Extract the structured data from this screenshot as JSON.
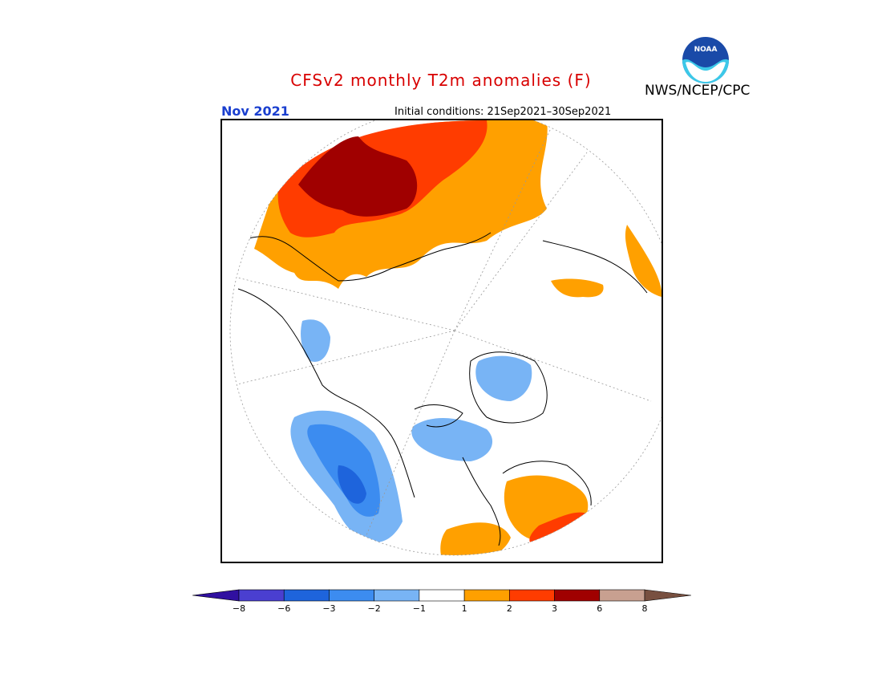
{
  "title": "CFSv2 monthly T2m anomalies (F)",
  "agency": "NWS/NCEP/CPC",
  "logo_text": "NOAA",
  "month": "Nov 2021",
  "initial_conditions": "Initial conditions: 21Sep2021–30Sep2021",
  "colors": {
    "title": "#d80000",
    "month": "#1a3fcf"
  },
  "legend": {
    "tick_labels": [
      "−8",
      "−6",
      "−3",
      "−2",
      "−1",
      "1",
      "2",
      "3",
      "6",
      "8"
    ],
    "bins": [
      {
        "range": "< -8",
        "color": "#3010a0"
      },
      {
        "range": "-8 to -6",
        "color": "#4a3fd0"
      },
      {
        "range": "-6 to -3",
        "color": "#1e64dc"
      },
      {
        "range": "-3 to -2",
        "color": "#3c8cf0"
      },
      {
        "range": "-2 to -1",
        "color": "#78b4f5"
      },
      {
        "range": "-1 to 1",
        "color": "#ffffff"
      },
      {
        "range": "1 to 2",
        "color": "#ffa000"
      },
      {
        "range": "2 to 3",
        "color": "#ff3c00"
      },
      {
        "range": "3 to 6",
        "color": "#a00000"
      },
      {
        "range": "6 to 8",
        "color": "#c8a090"
      },
      {
        "range": "> 8",
        "color": "#785040"
      }
    ]
  }
}
